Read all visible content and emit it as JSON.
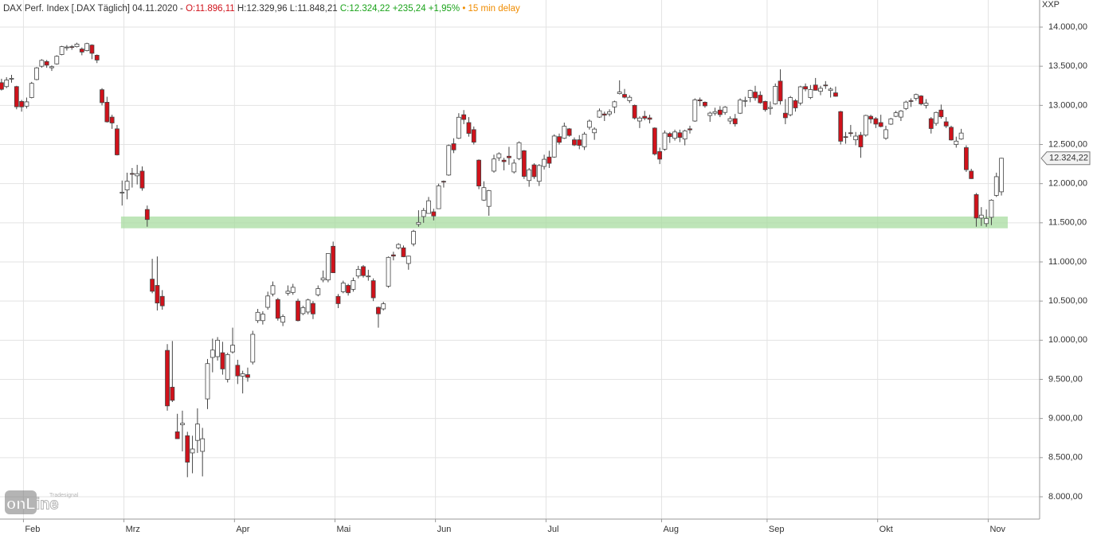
{
  "header": {
    "instrument": "DAX Perf. Index [.DAX Täglich] 04.11.2020 -",
    "open": "O:11.896,11",
    "hl": "H:12.329,96 L:11.848,21",
    "close": "C:12.324,22 +235,24 +1,95%",
    "delay": "• 15 min delay"
  },
  "currency": "XXP",
  "logo": {
    "brand": "Tradesignal",
    "name": "onLine"
  },
  "chart_data": {
    "type": "candlestick",
    "up_color": "#ffffff",
    "down_color": "#d0121b",
    "grid": true,
    "ylim": [
      7715,
      14346
    ],
    "xlim": [
      -0.3,
      206.6
    ],
    "yticks": [
      {
        "value": 8000,
        "label": "8.000,00"
      },
      {
        "value": 8500,
        "label": "8.500,00"
      },
      {
        "value": 9000,
        "label": "9.000,00"
      },
      {
        "value": 9500,
        "label": "9.500,00"
      },
      {
        "value": 10000,
        "label": "10.000,00"
      },
      {
        "value": 10500,
        "label": "10.500,00"
      },
      {
        "value": 11000,
        "label": "11.000,00"
      },
      {
        "value": 11500,
        "label": "11.500,00"
      },
      {
        "value": 12000,
        "label": "12.000,00"
      },
      {
        "value": 12500,
        "label": "12.500,00"
      },
      {
        "value": 13000,
        "label": "13.000,00"
      },
      {
        "value": 13500,
        "label": "13.500,00"
      },
      {
        "value": 14000,
        "label": "14.000,00"
      }
    ],
    "xticks": [
      {
        "value": 5,
        "label": "Feb"
      },
      {
        "value": 25,
        "label": "Mrz"
      },
      {
        "value": 47,
        "label": "Apr"
      },
      {
        "value": 67,
        "label": "Mai"
      },
      {
        "value": 87,
        "label": "Jun"
      },
      {
        "value": 109,
        "label": "Jul"
      },
      {
        "value": 132,
        "label": "Aug"
      },
      {
        "value": 153,
        "label": "Sep"
      },
      {
        "value": 175,
        "label": "Okt"
      },
      {
        "value": 197,
        "label": "Nov"
      }
    ],
    "band": {
      "range": [
        11430,
        11580
      ],
      "color": "#a8dca0"
    },
    "last_price": {
      "value": 12324.22,
      "label": "12.324,22"
    },
    "ohlc": [
      [
        13290,
        13340,
        13190,
        13205
      ],
      [
        13240,
        13360,
        13220,
        13324
      ],
      [
        13340,
        13390,
        13290,
        13345
      ],
      [
        13240,
        13250,
        12950,
        12982
      ],
      [
        13050,
        13070,
        12920,
        12981
      ],
      [
        12990,
        13100,
        12960,
        13045
      ],
      [
        13100,
        13300,
        13090,
        13281
      ],
      [
        13330,
        13490,
        13320,
        13479
      ],
      [
        13500,
        13590,
        13480,
        13575
      ],
      [
        13560,
        13580,
        13480,
        13514
      ],
      [
        13480,
        13510,
        13440,
        13494
      ],
      [
        13530,
        13640,
        13520,
        13627
      ],
      [
        13650,
        13760,
        13640,
        13750
      ],
      [
        13740,
        13770,
        13700,
        13745
      ],
      [
        13750,
        13770,
        13710,
        13744
      ],
      [
        13750,
        13800,
        13740,
        13783
      ],
      [
        13720,
        13740,
        13640,
        13681
      ],
      [
        13700,
        13800,
        13690,
        13789
      ],
      [
        13770,
        13780,
        13590,
        13665
      ],
      [
        13640,
        13650,
        13540,
        13579
      ],
      [
        13200,
        13220,
        13000,
        13035
      ],
      [
        13040,
        13110,
        12780,
        12790
      ],
      [
        12850,
        12880,
        12700,
        12775
      ],
      [
        12700,
        12750,
        12360,
        12368
      ],
      [
        11880,
        12040,
        11720,
        11890
      ],
      [
        11920,
        12140,
        11800,
        12031
      ],
      [
        12130,
        12200,
        11950,
        12128
      ],
      [
        12100,
        12240,
        11990,
        12127
      ],
      [
        12160,
        12220,
        11910,
        11944
      ],
      [
        11670,
        11720,
        11450,
        11542
      ],
      [
        10780,
        11040,
        10600,
        10625
      ],
      [
        10700,
        11070,
        10380,
        10475
      ],
      [
        10560,
        10640,
        10390,
        10439
      ],
      [
        9870,
        9950,
        9100,
        9161
      ],
      [
        9400,
        9990,
        9210,
        9232
      ],
      [
        8830,
        9060,
        8740,
        8742
      ],
      [
        8920,
        9100,
        8580,
        8939
      ],
      [
        8780,
        8830,
        8250,
        8442
      ],
      [
        8560,
        8780,
        8300,
        8610
      ],
      [
        8720,
        9130,
        8560,
        8929
      ],
      [
        8580,
        8880,
        8260,
        8741
      ],
      [
        9250,
        9760,
        9120,
        9701
      ],
      [
        9780,
        10020,
        9590,
        9874
      ],
      [
        9790,
        10040,
        9740,
        10000
      ],
      [
        9840,
        9980,
        9560,
        9633
      ],
      [
        9500,
        9840,
        9460,
        9816
      ],
      [
        9850,
        10160,
        9830,
        9936
      ],
      [
        9680,
        9750,
        9440,
        9544
      ],
      [
        9540,
        9610,
        9320,
        9571
      ],
      [
        9560,
        9650,
        9470,
        9525
      ],
      [
        9720,
        10120,
        9690,
        10075
      ],
      [
        10250,
        10400,
        10220,
        10356
      ],
      [
        10250,
        10370,
        10200,
        10333
      ],
      [
        10420,
        10620,
        10390,
        10565
      ],
      [
        10590,
        10750,
        10560,
        10697
      ],
      [
        10520,
        10540,
        10250,
        10280
      ],
      [
        10230,
        10330,
        10180,
        10302
      ],
      [
        10600,
        10700,
        10570,
        10626
      ],
      [
        10610,
        10720,
        10580,
        10676
      ],
      [
        10500,
        10530,
        10240,
        10250
      ],
      [
        10340,
        10440,
        10320,
        10416
      ],
      [
        10360,
        10530,
        10330,
        10514
      ],
      [
        10470,
        10500,
        10270,
        10336
      ],
      [
        10580,
        10700,
        10560,
        10659
      ],
      [
        10770,
        10890,
        10740,
        10795
      ],
      [
        10770,
        11110,
        10740,
        11107
      ],
      [
        11200,
        11260,
        10860,
        10862
      ],
      [
        10560,
        10590,
        10410,
        10467
      ],
      [
        10620,
        10760,
        10600,
        10730
      ],
      [
        10700,
        10720,
        10570,
        10606
      ],
      [
        10650,
        10800,
        10620,
        10760
      ],
      [
        10820,
        10950,
        10790,
        10905
      ],
      [
        10940,
        10960,
        10800,
        10825
      ],
      [
        10810,
        10900,
        10760,
        10820
      ],
      [
        10760,
        10790,
        10500,
        10542
      ],
      [
        10420,
        10430,
        10160,
        10337
      ],
      [
        10400,
        10490,
        10380,
        10465
      ],
      [
        10690,
        11070,
        10670,
        11058
      ],
      [
        11090,
        11130,
        11020,
        11075
      ],
      [
        11180,
        11240,
        11160,
        11223
      ],
      [
        11180,
        11210,
        11060,
        11066
      ],
      [
        10980,
        11080,
        10900,
        11074
      ],
      [
        11230,
        11410,
        11200,
        11391
      ],
      [
        11480,
        11660,
        11450,
        11505
      ],
      [
        11580,
        11690,
        11500,
        11658
      ],
      [
        11620,
        11830,
        11620,
        11781
      ],
      [
        11640,
        11680,
        11530,
        11587
      ],
      [
        11680,
        12000,
        11680,
        11971
      ],
      [
        12030,
        12040,
        11950,
        12021
      ],
      [
        12110,
        12500,
        12100,
        12487
      ],
      [
        12510,
        12580,
        12390,
        12431
      ],
      [
        12580,
        12900,
        12570,
        12848
      ],
      [
        12880,
        12940,
        12760,
        12820
      ],
      [
        12780,
        12850,
        12600,
        12642
      ],
      [
        12690,
        12730,
        12500,
        12530
      ],
      [
        12300,
        12310,
        11930,
        11970
      ],
      [
        11790,
        12030,
        11780,
        11949
      ],
      [
        11710,
        11920,
        11590,
        11911
      ],
      [
        12160,
        12370,
        12140,
        12315
      ],
      [
        12330,
        12400,
        12290,
        12382
      ],
      [
        12300,
        12330,
        12170,
        12281
      ],
      [
        12350,
        12470,
        12240,
        12331
      ],
      [
        12150,
        12310,
        12130,
        12262
      ],
      [
        12320,
        12540,
        12300,
        12523
      ],
      [
        12420,
        12430,
        12060,
        12093
      ],
      [
        12040,
        12200,
        11960,
        12177
      ],
      [
        12240,
        12260,
        12060,
        12089
      ],
      [
        12030,
        12250,
        11970,
        12232
      ],
      [
        12220,
        12370,
        12180,
        12311
      ],
      [
        12340,
        12420,
        12200,
        12260
      ],
      [
        12340,
        12630,
        12330,
        12608
      ],
      [
        12600,
        12640,
        12500,
        12528
      ],
      [
        12580,
        12780,
        12570,
        12733
      ],
      [
        12700,
        12710,
        12600,
        12616
      ],
      [
        12560,
        12590,
        12480,
        12494
      ],
      [
        12560,
        12620,
        12440,
        12489
      ],
      [
        12470,
        12660,
        12430,
        12633
      ],
      [
        12720,
        12820,
        12690,
        12799
      ],
      [
        12650,
        12720,
        12560,
        12697
      ],
      [
        12850,
        12960,
        12840,
        12931
      ],
      [
        12890,
        12920,
        12800,
        12875
      ],
      [
        12890,
        12950,
        12860,
        12919
      ],
      [
        12980,
        13060,
        12900,
        13046
      ],
      [
        13150,
        13320,
        13140,
        13171
      ],
      [
        13140,
        13210,
        13090,
        13104
      ],
      [
        13060,
        13130,
        13030,
        13103
      ],
      [
        13000,
        13010,
        12820,
        12838
      ],
      [
        12800,
        12860,
        12710,
        12838
      ],
      [
        12860,
        12930,
        12810,
        12836
      ],
      [
        12840,
        12880,
        12770,
        12822
      ],
      [
        12710,
        12720,
        12360,
        12379
      ],
      [
        12410,
        12460,
        12250,
        12313
      ],
      [
        12440,
        12680,
        12420,
        12647
      ],
      [
        12640,
        12660,
        12520,
        12600
      ],
      [
        12580,
        12690,
        12550,
        12660
      ],
      [
        12650,
        12690,
        12530,
        12591
      ],
      [
        12570,
        12690,
        12490,
        12674
      ],
      [
        12700,
        12740,
        12640,
        12687
      ],
      [
        12800,
        13090,
        12790,
        13070
      ],
      [
        13070,
        13100,
        12990,
        13058
      ],
      [
        13040,
        13050,
        12970,
        12994
      ],
      [
        12870,
        12920,
        12790,
        12901
      ],
      [
        12900,
        12970,
        12870,
        12920
      ],
      [
        12940,
        12990,
        12850,
        12882
      ],
      [
        12910,
        12990,
        12880,
        12977
      ],
      [
        12800,
        12860,
        12760,
        12830
      ],
      [
        12830,
        12890,
        12730,
        12764
      ],
      [
        12900,
        13090,
        12890,
        13067
      ],
      [
        13060,
        13110,
        12980,
        13062
      ],
      [
        13100,
        13200,
        13040,
        13190
      ],
      [
        13170,
        13250,
        13060,
        13096
      ],
      [
        13130,
        13180,
        13020,
        13033
      ],
      [
        13050,
        13060,
        12920,
        12945
      ],
      [
        12960,
        13050,
        12880,
        12974
      ],
      [
        13020,
        13280,
        13010,
        13243
      ],
      [
        13310,
        13460,
        13010,
        13057
      ],
      [
        12900,
        13080,
        12760,
        12842
      ],
      [
        12880,
        13120,
        12860,
        13100
      ],
      [
        13060,
        13080,
        12920,
        12968
      ],
      [
        13030,
        13250,
        13000,
        13237
      ],
      [
        13240,
        13280,
        13180,
        13209
      ],
      [
        13100,
        13260,
        13080,
        13202
      ],
      [
        13260,
        13350,
        13190,
        13193
      ],
      [
        13180,
        13250,
        13130,
        13218
      ],
      [
        13260,
        13310,
        13210,
        13255
      ],
      [
        13190,
        13230,
        13100,
        13208
      ],
      [
        13160,
        13240,
        13110,
        13116
      ],
      [
        12920,
        12930,
        12500,
        12542
      ],
      [
        12600,
        12660,
        12510,
        12594
      ],
      [
        12650,
        12750,
        12600,
        12642
      ],
      [
        12560,
        12660,
        12490,
        12607
      ],
      [
        12620,
        12660,
        12330,
        12469
      ],
      [
        12620,
        12880,
        12600,
        12871
      ],
      [
        12860,
        12880,
        12770,
        12825
      ],
      [
        12830,
        12850,
        12710,
        12761
      ],
      [
        12780,
        12880,
        12720,
        12730
      ],
      [
        12580,
        12740,
        12560,
        12689
      ],
      [
        12760,
        12840,
        12750,
        12828
      ],
      [
        12860,
        12930,
        12850,
        12906
      ],
      [
        12850,
        12940,
        12800,
        12928
      ],
      [
        12960,
        13060,
        12940,
        13042
      ],
      [
        13060,
        13090,
        12980,
        13051
      ],
      [
        13090,
        13150,
        13060,
        13138
      ],
      [
        13120,
        13130,
        13000,
        13019
      ],
      [
        13000,
        13080,
        12960,
        13028
      ],
      [
        12830,
        12850,
        12640,
        12704
      ],
      [
        12770,
        12920,
        12740,
        12909
      ],
      [
        12940,
        13010,
        12830,
        12854
      ],
      [
        12790,
        12850,
        12710,
        12736
      ],
      [
        12720,
        12740,
        12550,
        12558
      ],
      [
        12500,
        12600,
        12460,
        12543
      ],
      [
        12570,
        12700,
        12560,
        12646
      ],
      [
        12460,
        12490,
        12150,
        12178
      ],
      [
        12160,
        12190,
        12060,
        12064
      ],
      [
        11860,
        11880,
        11450,
        11561
      ],
      [
        11560,
        11700,
        11460,
        11598
      ],
      [
        11490,
        11670,
        11450,
        11556
      ],
      [
        11570,
        11800,
        11470,
        11789
      ],
      [
        11850,
        12140,
        11830,
        12089
      ],
      [
        11896.11,
        12329.96,
        11848.21,
        12324.22
      ]
    ]
  }
}
